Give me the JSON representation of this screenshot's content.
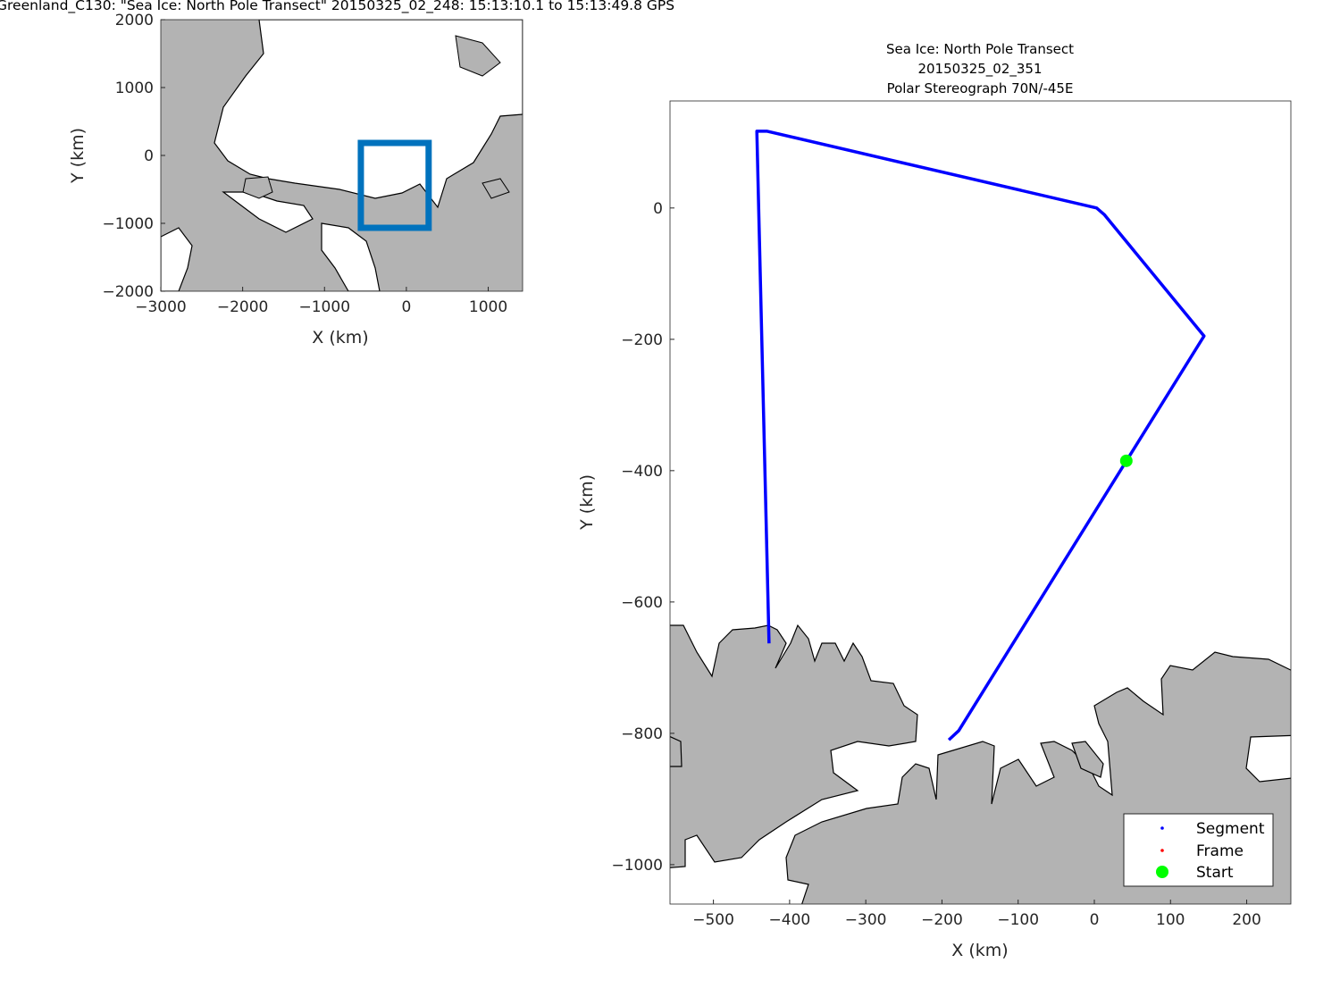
{
  "figure_title": "Greenland_C130: \"Sea Ice: North Pole Transect\"  20150325_02_248: 15:13:10.1 to 15:13:49.8 GPS",
  "chart_data": [
    {
      "type": "map",
      "name": "overview",
      "xlabel": "X (km)",
      "ylabel": "Y (km)",
      "xlim": [
        -3000,
        1420
      ],
      "ylim": [
        -2000,
        2000
      ],
      "xticks": [
        "-3000",
        "-2000",
        "-1000",
        "0",
        "1000"
      ],
      "yticks": [
        "2000",
        "1000",
        "0",
        "-1000",
        "-2000"
      ],
      "xtick_values": [
        -3000,
        -2000,
        -1000,
        0,
        1000
      ],
      "ytick_values": [
        2000,
        1000,
        0,
        -1000,
        -2000
      ],
      "extent_box": {
        "x": [
          -556,
          272
        ],
        "y": [
          -1066,
          184
        ],
        "color": "#0072bd"
      },
      "land_color": "#b3b3b3"
    },
    {
      "type": "map",
      "name": "detail",
      "title_lines": [
        "Sea Ice: North Pole Transect",
        "20150325_02_351",
        "Polar Stereograph 70N/-45E"
      ],
      "xlabel": "X (km)",
      "ylabel": "Y (km)",
      "xlim": [
        -557,
        258
      ],
      "ylim": [
        -1060,
        163
      ],
      "xticks": [
        "-500",
        "-400",
        "-300",
        "-200",
        "-100",
        "0",
        "100",
        "200"
      ],
      "xtick_values": [
        -500,
        -400,
        -300,
        -200,
        -100,
        0,
        100,
        200
      ],
      "yticks": [
        "0",
        "-200",
        "-400",
        "-600",
        "-800",
        "-1000"
      ],
      "ytick_values": [
        0,
        -200,
        -400,
        -600,
        -800,
        -1000
      ],
      "segment": {
        "name": "Segment",
        "color": "#0000ff",
        "x": [
          -191,
          -178,
          144,
          13,
          3,
          -430,
          -443,
          -427
        ],
        "y": [
          -810,
          -796,
          -195,
          -10,
          0,
          117,
          117,
          -663
        ]
      },
      "frame": {
        "name": "Frame",
        "color": "#ff0000"
      },
      "start": {
        "name": "Start",
        "color": "#00ff00",
        "x": 42,
        "y": -385
      },
      "legend": [
        "Segment",
        "Frame",
        "Start"
      ],
      "legend_placement": "bottom-right",
      "land_color": "#b3b3b3"
    }
  ]
}
